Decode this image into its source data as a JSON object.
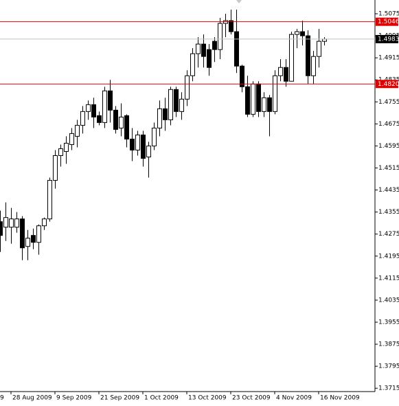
{
  "chart_data": {
    "type": "candlestick",
    "categories": [
      null,
      null,
      "28 Aug 2009",
      null,
      null,
      null,
      null,
      null,
      null,
      null,
      "9 Sep 2009",
      null,
      null,
      null,
      null,
      null,
      null,
      null,
      "21 Sep 2009",
      null,
      null,
      null,
      null,
      null,
      null,
      null,
      "1 Oct 2009",
      null,
      null,
      null,
      null,
      null,
      null,
      null,
      "13 Oct 2009",
      null,
      null,
      null,
      null,
      null,
      null,
      null,
      "23 Oct 2009",
      null,
      null,
      null,
      null,
      null,
      null,
      null,
      "4 Nov 2009",
      null,
      null,
      null,
      null,
      null,
      null,
      null,
      "16 Nov 2009",
      null
    ],
    "partial_x_label": "9",
    "open": [
      1.432,
      1.43,
      1.43,
      1.43,
      1.433,
      1.423,
      1.427,
      1.4245,
      1.4305,
      1.433,
      1.447,
      1.456,
      1.4575,
      1.46,
      1.463,
      1.467,
      1.472,
      1.4745,
      1.4705,
      1.468,
      1.4795,
      1.4725,
      1.466,
      1.4705,
      1.462,
      1.458,
      1.4635,
      1.4555,
      1.4595,
      1.466,
      1.473,
      1.469,
      1.48,
      1.472,
      1.4765,
      1.485,
      1.493,
      1.4965,
      1.4945,
      1.4975,
      1.4945,
      1.504,
      1.505,
      1.501,
      1.4885,
      1.481,
      1.471,
      1.482,
      1.472,
      1.477,
      1.472,
      1.485,
      1.488,
      1.483,
      1.5,
      1.501,
      1.4995,
      1.485,
      1.492,
      1.4975
    ],
    "high": [
      1.436,
      1.439,
      1.437,
      1.4355,
      1.434,
      1.429,
      1.4295,
      1.431,
      1.4335,
      1.448,
      1.458,
      1.46,
      1.463,
      1.466,
      1.469,
      1.474,
      1.476,
      1.477,
      1.472,
      1.481,
      1.4835,
      1.474,
      1.475,
      1.471,
      1.466,
      1.465,
      1.465,
      1.461,
      1.468,
      1.476,
      1.477,
      1.481,
      1.481,
      1.479,
      1.487,
      1.495,
      1.499,
      1.5,
      1.4965,
      1.499,
      1.506,
      1.5075,
      1.509,
      1.509,
      1.489,
      1.485,
      1.483,
      1.483,
      1.479,
      1.478,
      1.487,
      1.491,
      1.491,
      1.501,
      1.502,
      1.505,
      1.5015,
      1.494,
      1.502,
      1.499
    ],
    "low": [
      1.421,
      1.425,
      1.424,
      1.428,
      1.418,
      1.418,
      1.422,
      1.42,
      1.429,
      1.432,
      1.444,
      1.452,
      1.453,
      1.458,
      1.459,
      1.464,
      1.469,
      1.466,
      1.467,
      1.466,
      1.468,
      1.464,
      1.463,
      1.459,
      1.454,
      1.456,
      1.452,
      1.448,
      1.458,
      1.463,
      1.465,
      1.467,
      1.47,
      1.469,
      1.474,
      1.483,
      1.488,
      1.488,
      1.485,
      1.49,
      1.491,
      1.499,
      1.5,
      1.486,
      1.479,
      1.47,
      1.47,
      1.47,
      1.47,
      1.463,
      1.471,
      1.483,
      1.481,
      1.483,
      1.495,
      1.496,
      1.482,
      1.482,
      1.488,
      1.496
    ],
    "close": [
      1.427,
      1.4335,
      1.433,
      1.433,
      1.4225,
      1.426,
      1.4245,
      1.4305,
      1.433,
      1.447,
      1.456,
      1.4585,
      1.4605,
      1.464,
      1.467,
      1.472,
      1.4745,
      1.47,
      1.468,
      1.4795,
      1.4725,
      1.4655,
      1.47,
      1.462,
      1.458,
      1.4635,
      1.455,
      1.4595,
      1.466,
      1.473,
      1.469,
      1.48,
      1.472,
      1.4765,
      1.485,
      1.493,
      1.4965,
      1.492,
      1.488,
      1.4945,
      1.504,
      1.505,
      1.501,
      1.4885,
      1.481,
      1.471,
      1.482,
      1.472,
      1.477,
      1.472,
      1.485,
      1.488,
      1.483,
      1.5,
      1.501,
      1.4995,
      1.485,
      1.492,
      1.4975,
      1.4983
    ],
    "ylim": [
      1.3703,
      1.5125
    ],
    "yticks": [
      1.5075,
      1.4995,
      1.4915,
      1.4835,
      1.4755,
      1.4675,
      1.4595,
      1.4515,
      1.4435,
      1.4355,
      1.4275,
      1.4195,
      1.4115,
      1.4035,
      1.3955,
      1.3875,
      1.3795,
      1.3715
    ],
    "levels": [
      {
        "value": 1.5046,
        "color": "#e00000",
        "label_color": "#e00000"
      },
      {
        "value": {
          "value": 1.482,
          "label": "1.4820"
        },
        "color": "#e00000",
        "label_color": "#e00000"
      },
      {
        "value": 1.4983,
        "color": "#c0c0c0",
        "label_color": "#000000"
      }
    ]
  }
}
